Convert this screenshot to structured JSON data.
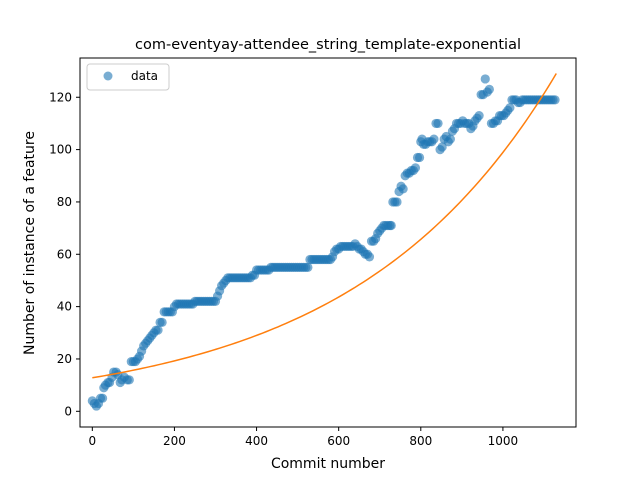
{
  "chart_data": {
    "type": "scatter",
    "title": "com-eventyay-attendee_string_template-exponential",
    "xlabel": "Commit number",
    "ylabel": "Number of instance of a feature",
    "xlim": [
      -30,
      1178
    ],
    "ylim": [
      -6,
      135
    ],
    "x_ticks": [
      0,
      200,
      400,
      600,
      800,
      1000
    ],
    "y_ticks": [
      0,
      20,
      40,
      60,
      80,
      100,
      120
    ],
    "grid": false,
    "legend": {
      "position": "top-left",
      "entries": [
        "data"
      ]
    },
    "colors": {
      "data": "#1f77b4",
      "fit": "#ff7f0e"
    },
    "series": [
      {
        "name": "data",
        "kind": "scatter",
        "points": [
          [
            0,
            4
          ],
          [
            5,
            3
          ],
          [
            10,
            2
          ],
          [
            15,
            3
          ],
          [
            20,
            5
          ],
          [
            25,
            5
          ],
          [
            28,
            9
          ],
          [
            32,
            10
          ],
          [
            38,
            11
          ],
          [
            42,
            11
          ],
          [
            48,
            13
          ],
          [
            52,
            15
          ],
          [
            58,
            15
          ],
          [
            62,
            14
          ],
          [
            68,
            11
          ],
          [
            72,
            12
          ],
          [
            78,
            13
          ],
          [
            85,
            12
          ],
          [
            90,
            12
          ],
          [
            95,
            19
          ],
          [
            100,
            19
          ],
          [
            105,
            19
          ],
          [
            110,
            20
          ],
          [
            115,
            21
          ],
          [
            120,
            23
          ],
          [
            125,
            25
          ],
          [
            130,
            26
          ],
          [
            135,
            27
          ],
          [
            140,
            28
          ],
          [
            145,
            29
          ],
          [
            150,
            30
          ],
          [
            155,
            31
          ],
          [
            160,
            31
          ],
          [
            165,
            34
          ],
          [
            170,
            34
          ],
          [
            175,
            38
          ],
          [
            180,
            38
          ],
          [
            185,
            38
          ],
          [
            190,
            38
          ],
          [
            195,
            38
          ],
          [
            200,
            40
          ],
          [
            205,
            41
          ],
          [
            210,
            41
          ],
          [
            215,
            41
          ],
          [
            220,
            41
          ],
          [
            225,
            41
          ],
          [
            230,
            41
          ],
          [
            235,
            41
          ],
          [
            240,
            41
          ],
          [
            245,
            41
          ],
          [
            250,
            42
          ],
          [
            255,
            42
          ],
          [
            260,
            42
          ],
          [
            265,
            42
          ],
          [
            270,
            42
          ],
          [
            275,
            42
          ],
          [
            280,
            42
          ],
          [
            285,
            42
          ],
          [
            290,
            42
          ],
          [
            295,
            42
          ],
          [
            300,
            42
          ],
          [
            305,
            44
          ],
          [
            310,
            46
          ],
          [
            315,
            48
          ],
          [
            320,
            49
          ],
          [
            325,
            50
          ],
          [
            330,
            51
          ],
          [
            335,
            51
          ],
          [
            340,
            51
          ],
          [
            345,
            51
          ],
          [
            350,
            51
          ],
          [
            355,
            51
          ],
          [
            360,
            51
          ],
          [
            365,
            51
          ],
          [
            370,
            51
          ],
          [
            375,
            51
          ],
          [
            380,
            51
          ],
          [
            385,
            51
          ],
          [
            390,
            52
          ],
          [
            395,
            52
          ],
          [
            400,
            54
          ],
          [
            405,
            54
          ],
          [
            410,
            54
          ],
          [
            415,
            54
          ],
          [
            420,
            54
          ],
          [
            425,
            54
          ],
          [
            430,
            54
          ],
          [
            435,
            55
          ],
          [
            440,
            55
          ],
          [
            445,
            55
          ],
          [
            450,
            55
          ],
          [
            455,
            55
          ],
          [
            460,
            55
          ],
          [
            465,
            55
          ],
          [
            470,
            55
          ],
          [
            475,
            55
          ],
          [
            480,
            55
          ],
          [
            485,
            55
          ],
          [
            490,
            55
          ],
          [
            495,
            55
          ],
          [
            500,
            55
          ],
          [
            505,
            55
          ],
          [
            510,
            55
          ],
          [
            515,
            55
          ],
          [
            520,
            55
          ],
          [
            525,
            55
          ],
          [
            530,
            58
          ],
          [
            535,
            58
          ],
          [
            540,
            58
          ],
          [
            545,
            58
          ],
          [
            550,
            58
          ],
          [
            555,
            58
          ],
          [
            560,
            58
          ],
          [
            565,
            58
          ],
          [
            570,
            58
          ],
          [
            575,
            58
          ],
          [
            580,
            58
          ],
          [
            585,
            59
          ],
          [
            590,
            61
          ],
          [
            595,
            62
          ],
          [
            600,
            62
          ],
          [
            605,
            63
          ],
          [
            610,
            63
          ],
          [
            615,
            63
          ],
          [
            620,
            63
          ],
          [
            625,
            63
          ],
          [
            630,
            63
          ],
          [
            635,
            63
          ],
          [
            640,
            64
          ],
          [
            645,
            63
          ],
          [
            650,
            62
          ],
          [
            655,
            62
          ],
          [
            660,
            61
          ],
          [
            665,
            60
          ],
          [
            670,
            60
          ],
          [
            675,
            59
          ],
          [
            680,
            65
          ],
          [
            685,
            65
          ],
          [
            690,
            66
          ],
          [
            695,
            68
          ],
          [
            700,
            69
          ],
          [
            705,
            70
          ],
          [
            710,
            71
          ],
          [
            715,
            71
          ],
          [
            720,
            71
          ],
          [
            725,
            71
          ],
          [
            728,
            71
          ],
          [
            732,
            80
          ],
          [
            737,
            80
          ],
          [
            742,
            80
          ],
          [
            747,
            84
          ],
          [
            752,
            86
          ],
          [
            757,
            85
          ],
          [
            762,
            90
          ],
          [
            767,
            91
          ],
          [
            772,
            91
          ],
          [
            777,
            92
          ],
          [
            782,
            92
          ],
          [
            787,
            93
          ],
          [
            792,
            97
          ],
          [
            797,
            97
          ],
          [
            800,
            103
          ],
          [
            803,
            104
          ],
          [
            807,
            102
          ],
          [
            812,
            102
          ],
          [
            817,
            103
          ],
          [
            822,
            103
          ],
          [
            827,
            103
          ],
          [
            832,
            104
          ],
          [
            837,
            110
          ],
          [
            842,
            110
          ],
          [
            847,
            100
          ],
          [
            852,
            101
          ],
          [
            857,
            104
          ],
          [
            862,
            105
          ],
          [
            867,
            103
          ],
          [
            872,
            104
          ],
          [
            877,
            107
          ],
          [
            882,
            108
          ],
          [
            887,
            110
          ],
          [
            892,
            110
          ],
          [
            897,
            110
          ],
          [
            902,
            111
          ],
          [
            907,
            110
          ],
          [
            912,
            110
          ],
          [
            917,
            110
          ],
          [
            922,
            108
          ],
          [
            927,
            109
          ],
          [
            932,
            111
          ],
          [
            937,
            112
          ],
          [
            942,
            113
          ],
          [
            947,
            121
          ],
          [
            952,
            121
          ],
          [
            957,
            127
          ],
          [
            962,
            122
          ],
          [
            967,
            123
          ],
          [
            972,
            110
          ],
          [
            977,
            110
          ],
          [
            982,
            111
          ],
          [
            987,
            111
          ],
          [
            992,
            113
          ],
          [
            997,
            113
          ],
          [
            1002,
            113
          ],
          [
            1007,
            114
          ],
          [
            1012,
            115
          ],
          [
            1017,
            116
          ],
          [
            1022,
            119
          ],
          [
            1027,
            119
          ],
          [
            1032,
            119
          ],
          [
            1037,
            118
          ],
          [
            1042,
            118
          ],
          [
            1047,
            119
          ],
          [
            1052,
            119
          ],
          [
            1057,
            119
          ],
          [
            1062,
            119
          ],
          [
            1067,
            119
          ],
          [
            1072,
            119
          ],
          [
            1077,
            119
          ],
          [
            1082,
            119
          ],
          [
            1087,
            119
          ],
          [
            1092,
            119
          ],
          [
            1097,
            119
          ],
          [
            1102,
            119
          ],
          [
            1107,
            119
          ],
          [
            1112,
            119
          ],
          [
            1117,
            119
          ],
          [
            1122,
            119
          ],
          [
            1127,
            119
          ]
        ]
      },
      {
        "kind": "line",
        "model": "exponential",
        "a": 12.8,
        "b": 0.002045,
        "x_range": [
          0,
          1130
        ]
      }
    ]
  }
}
